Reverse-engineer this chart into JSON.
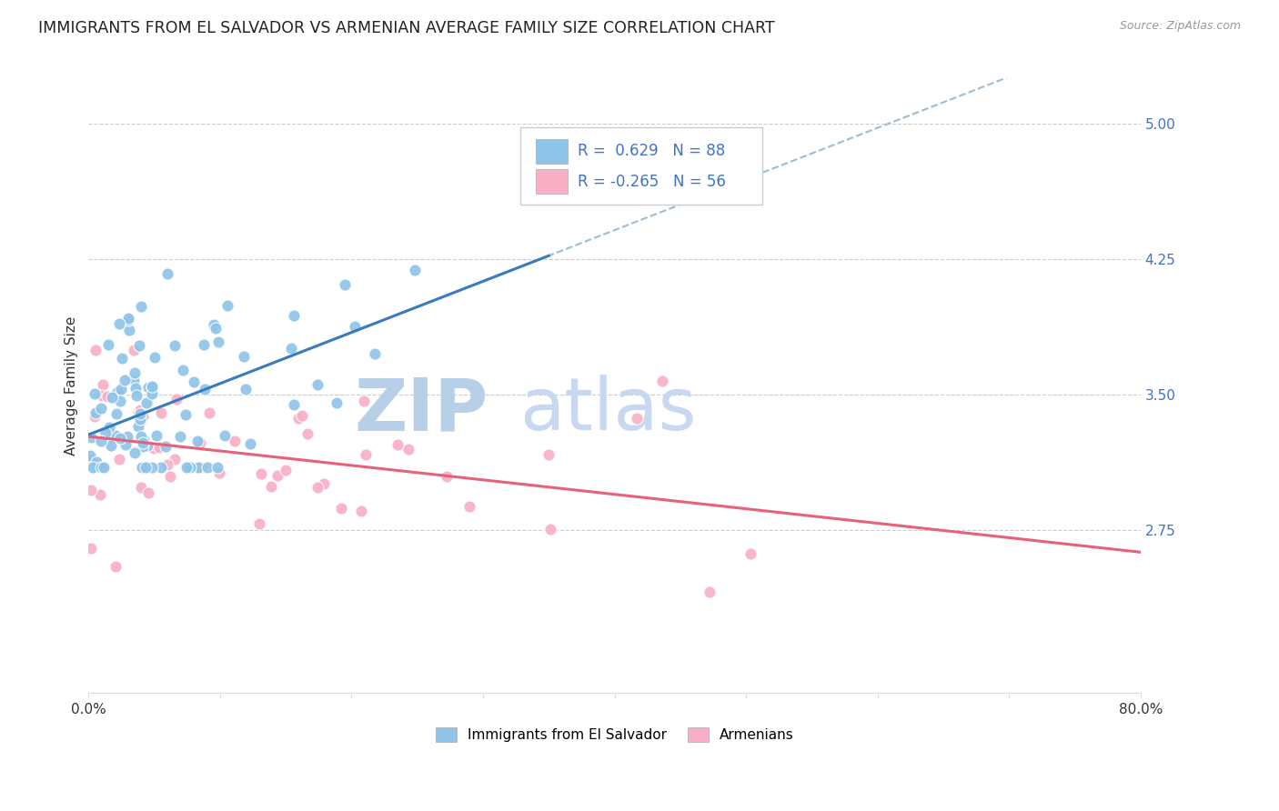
{
  "title": "IMMIGRANTS FROM EL SALVADOR VS ARMENIAN AVERAGE FAMILY SIZE CORRELATION CHART",
  "source": "Source: ZipAtlas.com",
  "ylabel": "Average Family Size",
  "right_yticks": [
    5.0,
    4.25,
    3.5,
    2.75
  ],
  "xmin": 0.0,
  "xmax": 80.0,
  "ymin": 1.85,
  "ymax": 5.25,
  "blue_R": 0.629,
  "blue_N": 88,
  "pink_R": -0.265,
  "pink_N": 56,
  "blue_color": "#8ec4e8",
  "pink_color": "#f9aec5",
  "blue_line_color": "#3a7bbf",
  "pink_line_color": "#e8607a",
  "dashed_line_color": "#9bbdd4",
  "watermark_ZIP_color": "#b8cfe8",
  "watermark_atlas_color": "#c8d8f0",
  "background_color": "#ffffff",
  "title_fontsize": 12.5,
  "label_fontsize": 11,
  "tick_fontsize": 11,
  "legend_fontsize": 12,
  "right_tick_color": "#4472c4",
  "blue_line_x0": 0.0,
  "blue_line_y0": 3.28,
  "blue_line_x1": 35.0,
  "blue_line_y1": 4.27,
  "pink_line_x0": 0.0,
  "pink_line_y0": 3.27,
  "pink_line_x1": 80.0,
  "pink_line_y1": 2.63
}
